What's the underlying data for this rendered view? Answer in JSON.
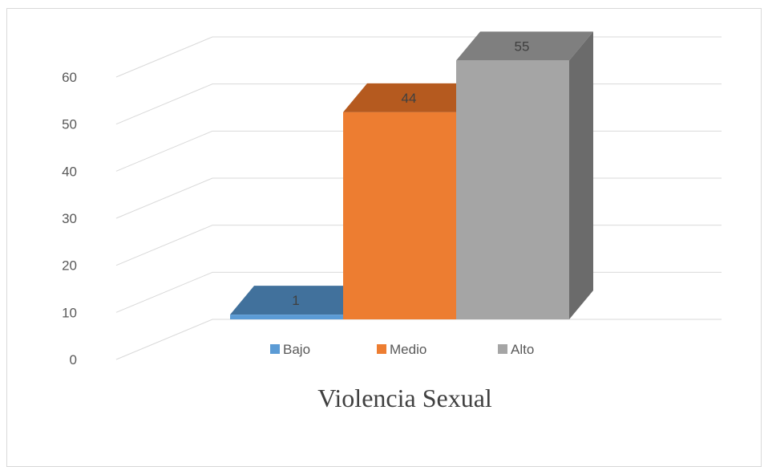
{
  "chart_data": {
    "type": "bar",
    "title": "Violencia Sexual",
    "categories": [
      "Bajo",
      "Medio",
      "Alto"
    ],
    "values": [
      1,
      44,
      55
    ],
    "data_labels": [
      "1",
      "44",
      "55"
    ],
    "ylim": [
      0,
      60
    ],
    "yticks": [
      "0",
      "10",
      "20",
      "30",
      "40",
      "50",
      "60"
    ],
    "grid": true,
    "legend_position": "bottom",
    "colors": {
      "Bajo": {
        "front": "#5b9bd5",
        "top": "#41719c",
        "side": "#2e5f8a"
      },
      "Medio": {
        "front": "#ed7d31",
        "top": "#b55a1f",
        "side": "#c0621f"
      },
      "Alto": {
        "front": "#a5a5a5",
        "top": "#7f7f7f",
        "side": "#6b6b6b"
      }
    }
  }
}
